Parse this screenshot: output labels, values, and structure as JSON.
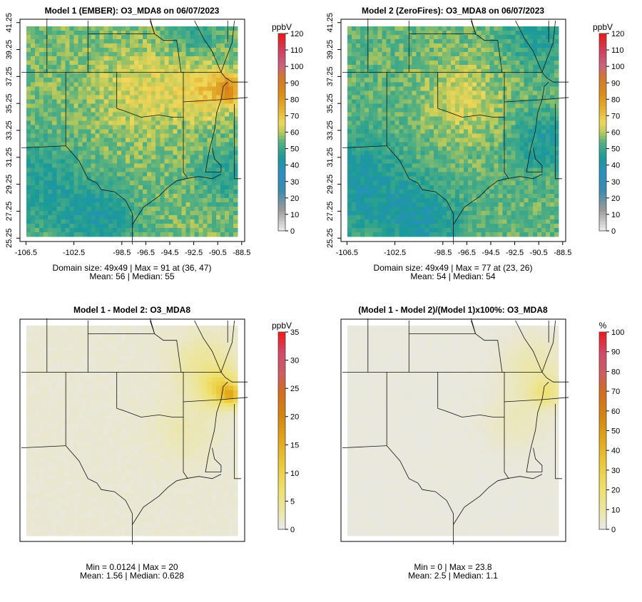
{
  "figure": {
    "x_ticks": [
      "-106.5",
      "-102.5",
      "-98.5",
      "-96.5",
      "-94.5",
      "-92.5",
      "-90.5",
      "-88.5"
    ],
    "y_ticks": [
      "25.25",
      "27.25",
      "29.25",
      "31.25",
      "33.25",
      "35.25",
      "37.25",
      "39.25",
      "41.25"
    ]
  },
  "chart_data": [
    {
      "type": "heatmap",
      "title": "Model 1 (EMBER): O3_MDA8 on 06/07/2023",
      "units": "ppbV",
      "colorbar_ticks": [
        "0",
        "10",
        "20",
        "30",
        "40",
        "50",
        "60",
        "70",
        "80",
        "90",
        "100",
        "110",
        "120"
      ],
      "clim": [
        0,
        120
      ],
      "stats_line1": "Domain size: 49x49 | Max = 91 at (36, 47)",
      "stats_line2": "Mean: 56 |  Median: 55",
      "xlim": [
        -107,
        -88.25
      ],
      "ylim": [
        25.0,
        41.5
      ],
      "mean": 56,
      "max": 91
    },
    {
      "type": "heatmap",
      "title": "Model 2 (ZeroFires): O3_MDA8 on 06/07/2023",
      "units": "ppbV",
      "colorbar_ticks": [
        "0",
        "10",
        "20",
        "30",
        "40",
        "50",
        "60",
        "70",
        "80",
        "90",
        "100",
        "110",
        "120"
      ],
      "clim": [
        0,
        120
      ],
      "stats_line1": "Domain size: 49x49 | Max = 77 at (23, 26)",
      "stats_line2": "Mean: 54 |  Median: 54",
      "xlim": [
        -107,
        -88.25
      ],
      "ylim": [
        25.0,
        41.5
      ],
      "mean": 54,
      "max": 77
    },
    {
      "type": "heatmap",
      "title": "Model 1 - Model 2: O3_MDA8",
      "units": "ppbV",
      "colorbar_ticks": [
        "0",
        "5",
        "10",
        "15",
        "20",
        "25",
        "30",
        "35"
      ],
      "clim": [
        0,
        35
      ],
      "stats_line1": "Min = 0.0124 | Max = 20",
      "stats_line2": "Mean: 1.56 |  Median: 0.628",
      "min": 0.0124,
      "max": 20
    },
    {
      "type": "heatmap",
      "title": "(Model 1 - Model 2)/(Model 1)x100%: O3_MDA8",
      "units": "%",
      "colorbar_ticks": [
        "0",
        "10",
        "20",
        "30",
        "40",
        "50",
        "60",
        "70",
        "80",
        "90",
        "100"
      ],
      "clim": [
        0,
        100
      ],
      "stats_line1": "Min = 0 | Max = 23.8",
      "stats_line2": "Mean: 2.5 |  Median: 1.1",
      "min": 0,
      "max": 23.8
    }
  ]
}
